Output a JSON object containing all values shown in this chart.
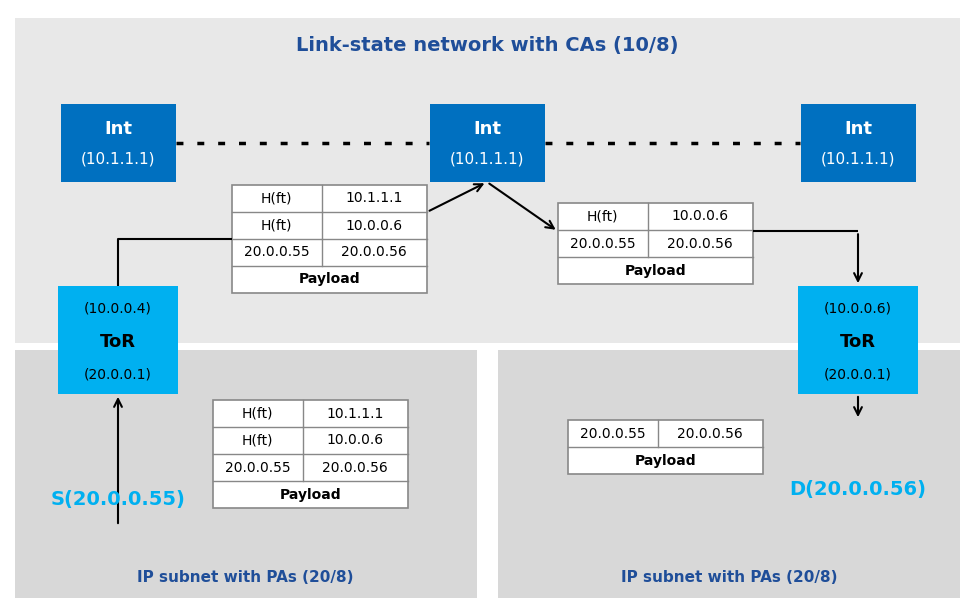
{
  "title": "Link-state network with CAs (10/8)",
  "title_color": "#1f4e99",
  "int_box_color": "#0070c0",
  "tor_box_color": "#00b0f0",
  "source_label": "S(20.0.0.55)",
  "dest_label": "D(20.0.0.56)",
  "source_color": "#00b0f0",
  "dest_color": "#00b0f0",
  "subnet_left_label": "IP subnet with PAs (20/8)",
  "subnet_right_label": "IP subnet with PAs (20/8)",
  "subnet_label_color": "#1f4e99",
  "packet1_rows": [
    [
      "H(ft)",
      "10.1.1.1"
    ],
    [
      "H(ft)",
      "10.0.0.6"
    ],
    [
      "20.0.0.55",
      "20.0.0.56"
    ],
    [
      "Payload",
      ""
    ]
  ],
  "packet2_rows": [
    [
      "H(ft)",
      "10.0.0.6"
    ],
    [
      "20.0.0.55",
      "20.0.0.56"
    ],
    [
      "Payload",
      ""
    ]
  ],
  "packet3_rows": [
    [
      "H(ft)",
      "10.1.1.1"
    ],
    [
      "H(ft)",
      "10.0.0.6"
    ],
    [
      "20.0.0.55",
      "20.0.0.56"
    ],
    [
      "Payload",
      ""
    ]
  ],
  "packet4_rows": [
    [
      "20.0.0.55",
      "20.0.0.56"
    ],
    [
      "Payload",
      ""
    ]
  ],
  "arrow_color": "#000000",
  "dotted_line_color": "#000000",
  "table_border_color": "#888888",
  "bg_top_color": "#e8e8e8",
  "bg_bot_color": "#d8d8d8",
  "white": "#ffffff"
}
